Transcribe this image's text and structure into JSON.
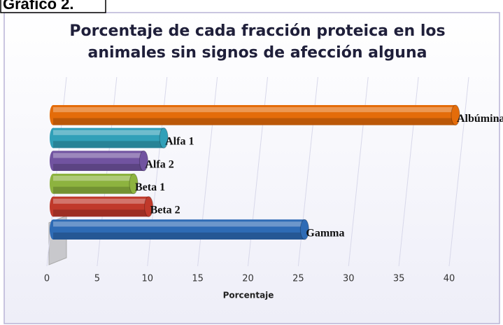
{
  "figure_label": "Gráfico 2.",
  "chart_data": {
    "type": "bar",
    "orientation": "horizontal",
    "title": [
      "Porcentaje de cada fracción proteica en los",
      "animales sin signos de afección alguna"
    ],
    "categories": [
      "Albúminas",
      "Alfa 1",
      "Alfa 2",
      "Beta 1",
      "Beta 2",
      "Gamma"
    ],
    "values": [
      40,
      11,
      9,
      8,
      9.5,
      25
    ],
    "colors": [
      "#e46c0a",
      "#31a0b8",
      "#7153a0",
      "#8db33f",
      "#c0392b",
      "#2e6bb5"
    ],
    "xlabel": "Porcentaje",
    "xlim": [
      0,
      40
    ],
    "xticks": [
      0,
      5,
      10,
      15,
      20,
      25,
      30,
      35,
      40
    ],
    "grid": true
  }
}
